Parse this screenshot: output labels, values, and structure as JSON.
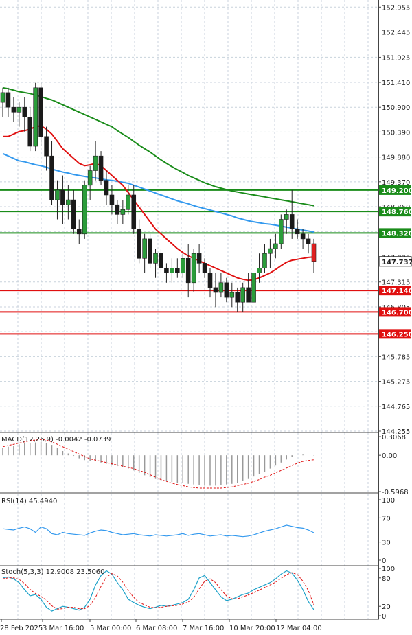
{
  "chart_data": {
    "type": "candlestick",
    "instrument_panel": {
      "y_ticks": [
        "152.955",
        "152.445",
        "151.925",
        "151.410",
        "150.900",
        "150.390",
        "149.880",
        "149.370",
        "148.860",
        "148.350",
        "147.825",
        "147.315",
        "146.805",
        "146.295",
        "145.785",
        "145.275",
        "144.765",
        "144.255"
      ],
      "ylim": [
        144.255,
        153.1
      ],
      "current_price": "147.737",
      "horizontal_levels": [
        {
          "value": 149.2,
          "label": "149.200",
          "color": "#1a8c1a"
        },
        {
          "value": 148.76,
          "label": "148.760",
          "color": "#1a8c1a"
        },
        {
          "value": 148.32,
          "label": "148.320",
          "color": "#1a8c1a"
        },
        {
          "value": 147.14,
          "label": "147.140",
          "color": "#e01010"
        },
        {
          "value": 146.7,
          "label": "146.700",
          "color": "#e01010"
        },
        {
          "value": 146.25,
          "label": "146.250",
          "color": "#e01010"
        }
      ],
      "candles": [
        [
          151.0,
          151.3,
          150.7,
          151.2
        ],
        [
          151.2,
          151.3,
          150.7,
          150.9
        ],
        [
          150.9,
          151.1,
          150.6,
          150.8
        ],
        [
          150.8,
          151.0,
          150.5,
          150.9
        ],
        [
          150.9,
          151.1,
          150.4,
          150.7
        ],
        [
          150.7,
          150.9,
          150.0,
          150.1
        ],
        [
          150.1,
          151.4,
          150.0,
          151.3
        ],
        [
          151.3,
          151.4,
          150.1,
          150.3
        ],
        [
          150.3,
          150.5,
          149.6,
          149.9
        ],
        [
          149.9,
          150.2,
          148.9,
          149.0
        ],
        [
          149.0,
          149.4,
          148.6,
          149.2
        ],
        [
          149.2,
          149.5,
          148.5,
          148.9
        ],
        [
          148.9,
          149.3,
          148.6,
          149.0
        ],
        [
          149.0,
          149.2,
          148.3,
          148.4
        ],
        [
          148.4,
          148.6,
          148.1,
          148.3
        ],
        [
          148.3,
          149.4,
          148.2,
          149.3
        ],
        [
          149.3,
          149.7,
          149.0,
          149.6
        ],
        [
          149.6,
          150.2,
          149.4,
          149.9
        ],
        [
          149.9,
          150.0,
          149.3,
          149.4
        ],
        [
          149.4,
          149.6,
          148.9,
          149.1
        ],
        [
          149.1,
          149.3,
          148.7,
          148.9
        ],
        [
          148.9,
          149.0,
          148.5,
          148.7
        ],
        [
          148.7,
          149.0,
          148.5,
          148.8
        ],
        [
          148.8,
          149.3,
          148.7,
          149.1
        ],
        [
          149.1,
          149.3,
          148.3,
          148.4
        ],
        [
          148.4,
          148.6,
          147.7,
          147.8
        ],
        [
          147.8,
          148.3,
          147.5,
          148.2
        ],
        [
          148.2,
          148.3,
          147.6,
          147.7
        ],
        [
          147.7,
          148.0,
          147.4,
          147.9
        ],
        [
          147.9,
          148.0,
          147.5,
          147.6
        ],
        [
          147.6,
          147.7,
          147.3,
          147.5
        ],
        [
          147.5,
          147.8,
          147.3,
          147.6
        ],
        [
          147.6,
          147.8,
          147.4,
          147.5
        ],
        [
          147.5,
          147.9,
          147.4,
          147.8
        ],
        [
          147.8,
          148.1,
          147.0,
          147.3
        ],
        [
          147.3,
          148.0,
          147.1,
          147.9
        ],
        [
          147.9,
          148.1,
          147.5,
          147.7
        ],
        [
          147.7,
          147.8,
          147.4,
          147.5
        ],
        [
          147.5,
          147.6,
          147.0,
          147.2
        ],
        [
          147.2,
          147.5,
          146.8,
          147.1
        ],
        [
          147.1,
          147.5,
          147.0,
          147.3
        ],
        [
          147.3,
          147.4,
          146.9,
          147.0
        ],
        [
          147.0,
          147.3,
          146.8,
          147.1
        ],
        [
          147.1,
          147.2,
          146.7,
          146.9
        ],
        [
          146.9,
          147.3,
          146.7,
          147.2
        ],
        [
          147.2,
          147.5,
          146.9,
          146.9
        ],
        [
          146.9,
          147.5,
          146.9,
          147.5
        ],
        [
          147.5,
          147.9,
          147.3,
          147.6
        ],
        [
          147.6,
          148.1,
          147.5,
          147.9
        ],
        [
          147.9,
          148.2,
          147.6,
          148.0
        ],
        [
          148.0,
          148.3,
          147.8,
          148.1
        ],
        [
          148.1,
          148.7,
          148.0,
          148.6
        ],
        [
          148.6,
          148.8,
          148.3,
          148.7
        ],
        [
          148.7,
          149.2,
          148.2,
          148.4
        ],
        [
          148.4,
          148.6,
          148.2,
          148.3
        ],
        [
          148.3,
          148.4,
          148.0,
          148.2
        ],
        [
          148.2,
          148.3,
          147.9,
          148.1
        ],
        [
          148.1,
          148.2,
          147.5,
          147.737
        ]
      ],
      "ma_red": [
        150.3,
        150.3,
        150.35,
        150.4,
        150.42,
        150.45,
        150.5,
        150.52,
        150.45,
        150.35,
        150.2,
        150.05,
        149.95,
        149.85,
        149.75,
        149.7,
        149.72,
        149.75,
        149.7,
        149.6,
        149.5,
        149.4,
        149.3,
        149.15,
        149.0,
        148.85,
        148.7,
        148.55,
        148.4,
        148.3,
        148.2,
        148.1,
        148.0,
        147.92,
        147.85,
        147.8,
        147.75,
        147.7,
        147.65,
        147.6,
        147.55,
        147.5,
        147.45,
        147.4,
        147.37,
        147.35,
        147.36,
        147.4,
        147.45,
        147.5,
        147.57,
        147.65,
        147.72,
        147.76,
        147.78,
        147.8,
        147.82,
        147.83
      ],
      "ma_blue": [
        149.95,
        149.9,
        149.85,
        149.8,
        149.78,
        149.75,
        149.72,
        149.7,
        149.67,
        149.63,
        149.6,
        149.57,
        149.55,
        149.52,
        149.5,
        149.48,
        149.46,
        149.45,
        149.43,
        149.41,
        149.4,
        149.38,
        149.36,
        149.34,
        149.3,
        149.26,
        149.22,
        149.18,
        149.14,
        149.1,
        149.06,
        149.02,
        148.98,
        148.95,
        148.92,
        148.88,
        148.85,
        148.82,
        148.79,
        148.76,
        148.73,
        148.7,
        148.67,
        148.63,
        148.6,
        148.57,
        148.55,
        148.53,
        148.51,
        148.5,
        148.48,
        148.46,
        148.44,
        148.42,
        148.4,
        148.38,
        148.36,
        148.34
      ],
      "ma_green": [
        151.3,
        151.28,
        151.25,
        151.22,
        151.2,
        151.18,
        151.15,
        151.12,
        151.08,
        151.05,
        151.0,
        150.95,
        150.9,
        150.85,
        150.8,
        150.75,
        150.7,
        150.65,
        150.6,
        150.55,
        150.5,
        150.42,
        150.35,
        150.28,
        150.2,
        150.12,
        150.05,
        149.98,
        149.9,
        149.82,
        149.75,
        149.68,
        149.62,
        149.56,
        149.5,
        149.45,
        149.4,
        149.35,
        149.31,
        149.27,
        149.24,
        149.21,
        149.18,
        149.16,
        149.14,
        149.12,
        149.1,
        149.08,
        149.06,
        149.04,
        149.02,
        149.0,
        148.98,
        148.96,
        148.94,
        148.92,
        148.9,
        148.88
      ]
    },
    "macd_panel": {
      "label": "MACD(12,26,9) -0.0042 -0.0739",
      "y_ticks": [
        "0.3068",
        "0.00",
        "-0.5968"
      ],
      "ylim": [
        -0.5968,
        0.3068
      ],
      "histogram": [
        0.12,
        0.14,
        0.16,
        0.18,
        0.2,
        0.2,
        0.21,
        0.22,
        0.2,
        0.17,
        0.12,
        0.07,
        0.03,
        -0.01,
        -0.05,
        -0.08,
        -0.09,
        -0.1,
        -0.12,
        -0.14,
        -0.16,
        -0.18,
        -0.2,
        -0.22,
        -0.25,
        -0.29,
        -0.33,
        -0.36,
        -0.39,
        -0.41,
        -0.43,
        -0.44,
        -0.45,
        -0.46,
        -0.47,
        -0.48,
        -0.49,
        -0.5,
        -0.5,
        -0.5,
        -0.49,
        -0.48,
        -0.47,
        -0.45,
        -0.42,
        -0.39,
        -0.35,
        -0.31,
        -0.27,
        -0.22,
        -0.17,
        -0.12,
        -0.07,
        -0.03,
        0.0,
        0.01,
        0.0,
        -0.0042
      ],
      "signal": [
        0.14,
        0.16,
        0.18,
        0.2,
        0.22,
        0.24,
        0.25,
        0.26,
        0.25,
        0.22,
        0.18,
        0.14,
        0.1,
        0.06,
        0.02,
        -0.02,
        -0.06,
        -0.08,
        -0.1,
        -0.12,
        -0.14,
        -0.16,
        -0.18,
        -0.2,
        -0.22,
        -0.25,
        -0.28,
        -0.32,
        -0.36,
        -0.4,
        -0.43,
        -0.46,
        -0.48,
        -0.5,
        -0.52,
        -0.53,
        -0.54,
        -0.54,
        -0.54,
        -0.54,
        -0.54,
        -0.53,
        -0.52,
        -0.5,
        -0.48,
        -0.46,
        -0.43,
        -0.4,
        -0.36,
        -0.33,
        -0.29,
        -0.25,
        -0.21,
        -0.17,
        -0.13,
        -0.1,
        -0.085,
        -0.0739
      ]
    },
    "rsi_panel": {
      "label": "RSI(14) 45.4940",
      "y_ticks": [
        "100",
        "70",
        "30",
        "0"
      ],
      "ylim": [
        0,
        100
      ],
      "values": [
        52,
        51,
        50,
        53,
        55,
        52,
        46,
        55,
        52,
        44,
        42,
        46,
        44,
        43,
        42,
        41,
        45,
        48,
        50,
        49,
        46,
        44,
        42,
        43,
        44,
        42,
        41,
        40,
        42,
        41,
        40,
        41,
        42,
        44,
        41,
        43,
        44,
        42,
        40,
        41,
        42,
        40,
        41,
        40,
        39,
        40,
        42,
        45,
        48,
        50,
        52,
        55,
        58,
        56,
        54,
        53,
        50,
        45.494
      ]
    },
    "stoch_panel": {
      "label": "Stoch(5,3,3) 12.9008 23.5060",
      "y_ticks": [
        "100",
        "80",
        "20",
        "0"
      ],
      "ylim": [
        0,
        100
      ],
      "k": [
        80,
        82,
        78,
        70,
        55,
        42,
        45,
        35,
        18,
        10,
        15,
        20,
        18,
        15,
        12,
        18,
        35,
        65,
        85,
        95,
        88,
        70,
        55,
        35,
        28,
        22,
        18,
        15,
        18,
        22,
        20,
        22,
        25,
        28,
        35,
        55,
        80,
        85,
        70,
        55,
        40,
        32,
        35,
        40,
        45,
        48,
        55,
        60,
        65,
        70,
        78,
        88,
        95,
        90,
        75,
        55,
        30,
        12.9008
      ],
      "d": [
        78,
        80,
        80,
        77,
        68,
        56,
        47,
        41,
        33,
        21,
        14,
        15,
        18,
        18,
        15,
        15,
        22,
        39,
        62,
        82,
        89,
        84,
        71,
        53,
        39,
        28,
        23,
        18,
        17,
        18,
        20,
        21,
        22,
        25,
        29,
        39,
        57,
        73,
        78,
        70,
        55,
        42,
        36,
        36,
        40,
        44,
        49,
        54,
        60,
        65,
        71,
        79,
        87,
        91,
        87,
        73,
        53,
        23.506
      ]
    },
    "x_ticks": [
      "28 Feb 2025",
      "3 Mar 16:00",
      "5 Mar 00:00",
      "6 Mar 08:00",
      "7 Mar 16:00",
      "10 Mar 20:00",
      "12 Mar 04:00"
    ]
  }
}
